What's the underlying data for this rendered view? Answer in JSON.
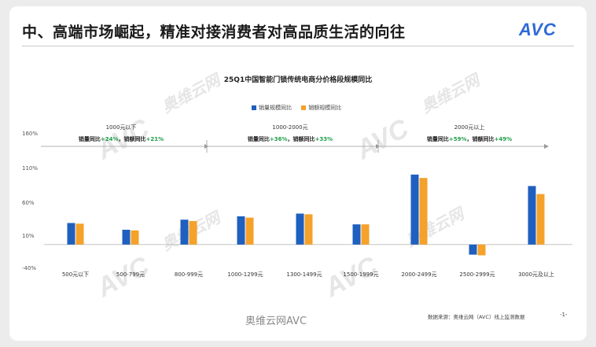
{
  "header": {
    "title": "中、高端市场崛起，精准对接消费者对高品质生活的向往",
    "logo": "AVC"
  },
  "watermark": {
    "brand": "AVC",
    "cn": "奥维云网",
    "en": "ALL VIEW CLOUD"
  },
  "chart_data": {
    "type": "bar",
    "title": "25Q1中国智能门锁传统电商分价格段规模同比",
    "categories": [
      "500元以下",
      "500-799元",
      "800-999元",
      "1000-1299元",
      "1300-1499元",
      "1500-1999元",
      "2000-2499元",
      "2500-2999元",
      "3000元及以上"
    ],
    "series": [
      {
        "name": "销量规模同比",
        "color": "#1f5fbf",
        "values": [
          32,
          22,
          37,
          42,
          46,
          30,
          104,
          -15,
          87
        ]
      },
      {
        "name": "销额规模同比",
        "color": "#f5a12a",
        "values": [
          31,
          21,
          35,
          40,
          45,
          30,
          99,
          -16,
          75
        ]
      }
    ],
    "yticks": [
      "160%",
      "110%",
      "60%",
      "10%",
      "-40%"
    ],
    "ylim": [
      -40,
      160
    ],
    "ygrid": false,
    "legend_position": "top-center",
    "price_ranges": [
      {
        "label": "1000元以下",
        "stat_prefix": "销量同比",
        "stat_value": "+24%",
        "stat_mid": "，销额同比",
        "stat_value2": "+21%"
      },
      {
        "label": "1000-2000元",
        "stat_prefix": "销量同比",
        "stat_value": "+36%",
        "stat_mid": "，销额同比",
        "stat_value2": "+33%"
      },
      {
        "label": "2000元以上",
        "stat_prefix": "销量同比",
        "stat_value": "+59%",
        "stat_mid": "，销额同比",
        "stat_value2": "+49%"
      }
    ]
  },
  "footer": {
    "source": "数据来源：奥维云网（AVC）线上监测数据",
    "page": "-1-",
    "social": "奥维云网AVC"
  }
}
